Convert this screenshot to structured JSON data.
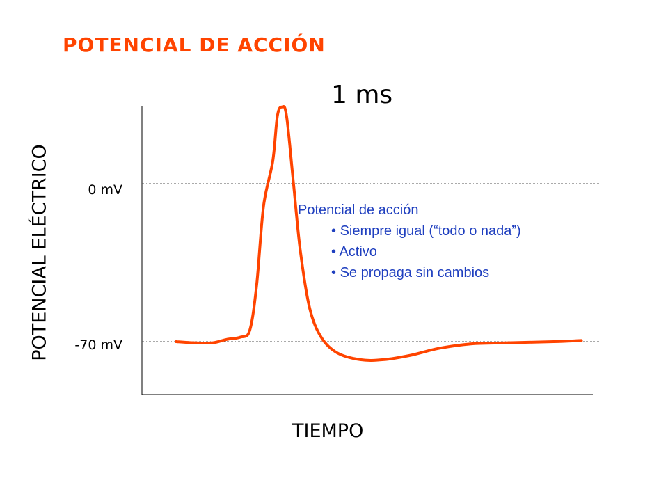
{
  "colors": {
    "accent": "#ff4400",
    "note_text": "#1f3fbf",
    "axis": "#000000",
    "gridline": "#555555"
  },
  "title": "POTENCIAL DE ACCIÓN",
  "scale_bar": {
    "label": "1 ms"
  },
  "annotation": {
    "heading": "Potencial de acción",
    "bullets": [
      "Siempre igual (“todo o nada”)",
      "Activo",
      "Se propaga sin cambios"
    ]
  },
  "chart_data": {
    "type": "line",
    "xlabel": "TIEMPO",
    "ylabel": "POTENCIAL ELÉCTRICO",
    "tick_labels": {
      "zero": "0 mV",
      "rest": "-70 mV"
    },
    "reference_lines": [
      0,
      -70
    ],
    "ylim": [
      -100,
      40
    ],
    "xlim": [
      0,
      10
    ],
    "grid": false,
    "series": [
      {
        "values": [
          [
            0.8,
            -70
          ],
          [
            1.2,
            -70.5
          ],
          [
            1.6,
            -70.5
          ],
          [
            1.9,
            -69
          ],
          [
            2.2,
            -68
          ],
          [
            2.4,
            -65
          ],
          [
            2.55,
            -45
          ],
          [
            2.7,
            -10
          ],
          [
            2.9,
            10
          ],
          [
            3.0,
            30
          ],
          [
            3.1,
            34
          ],
          [
            3.2,
            30
          ],
          [
            3.35,
            0
          ],
          [
            3.5,
            -30
          ],
          [
            3.7,
            -55
          ],
          [
            3.95,
            -68
          ],
          [
            4.3,
            -75
          ],
          [
            4.8,
            -78
          ],
          [
            5.3,
            -78
          ],
          [
            5.9,
            -76
          ],
          [
            6.5,
            -73
          ],
          [
            7.2,
            -71
          ],
          [
            8.0,
            -70.5
          ],
          [
            9.0,
            -70
          ],
          [
            9.6,
            -69.5
          ]
        ]
      }
    ]
  }
}
